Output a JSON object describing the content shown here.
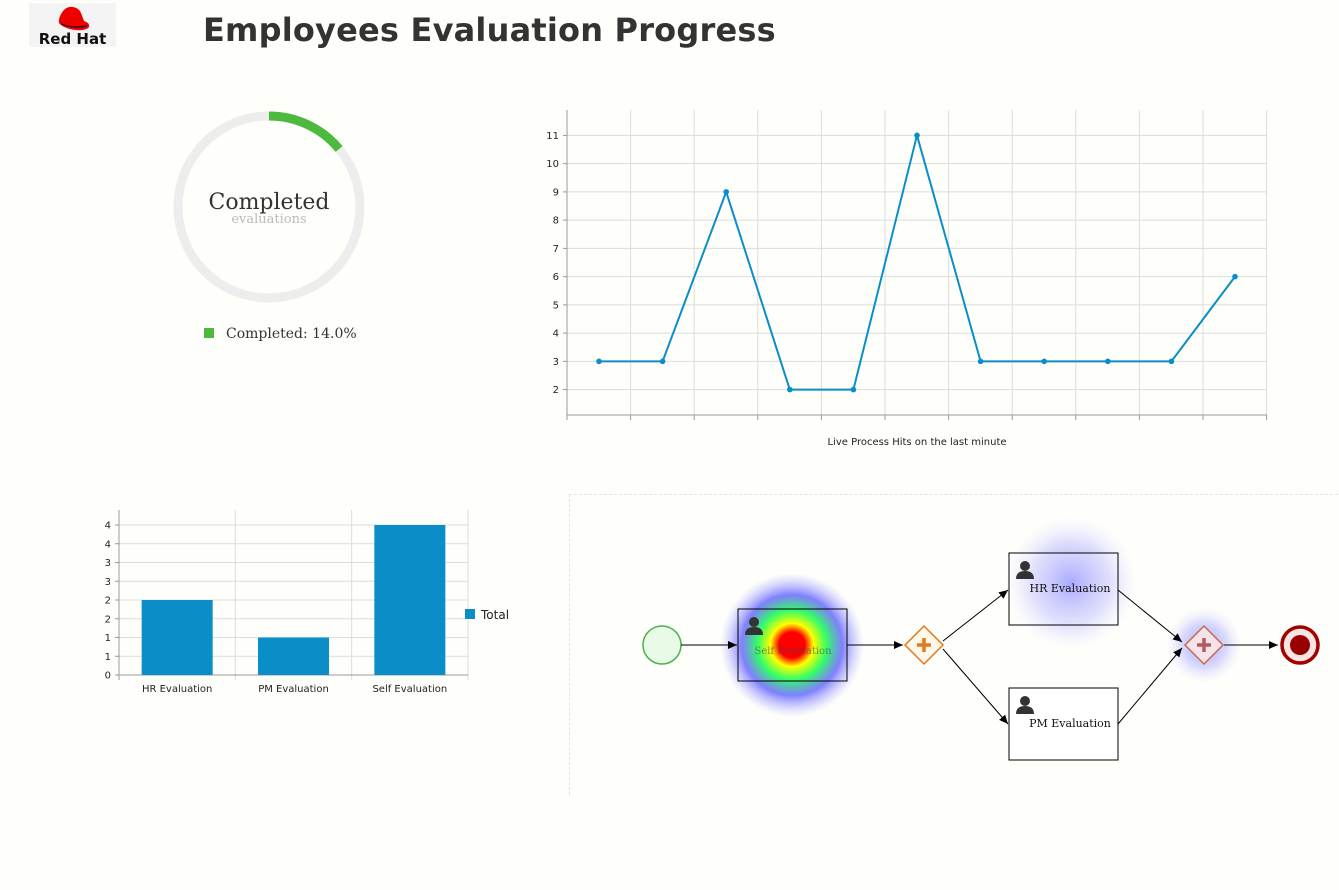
{
  "header": {
    "logo_text": "Red Hat",
    "title": "Employees Evaluation Progress"
  },
  "donut": {
    "center_title": "Completed",
    "center_subtitle": "evaluations",
    "legend_label": "Completed: 14.0%",
    "completed_fraction": 0.14,
    "color": "#4cb93f"
  },
  "chart_data": [
    {
      "type": "line",
      "x": [
        1,
        2,
        3,
        4,
        5,
        6,
        7,
        8,
        9,
        10,
        11
      ],
      "series": [
        {
          "values": [
            3,
            3,
            9,
            2,
            2,
            11,
            3,
            3,
            3,
            3,
            6
          ]
        }
      ],
      "xlabel": "Live Process Hits on the last minute",
      "ylabel": "",
      "ylim": [
        1.1,
        11.9
      ],
      "y_ticks": [
        "2",
        "3",
        "4",
        "5",
        "6",
        "7",
        "8",
        "9",
        "10",
        "11"
      ],
      "grid": true,
      "color": "#0b8ec8"
    },
    {
      "type": "bar",
      "categories": [
        "HR Evaluation",
        "PM Evaluation",
        "Self Evaluation"
      ],
      "series": [
        {
          "name": "Total",
          "values": [
            2,
            1,
            4
          ]
        }
      ],
      "ylim": [
        0,
        4
      ],
      "y_ticks": [
        "0",
        "1",
        "1",
        "2",
        "2",
        "3",
        "3",
        "4",
        "4"
      ],
      "grid": true,
      "legend": "right",
      "color": "#0b8ec8"
    }
  ],
  "process": {
    "tasks": [
      {
        "label": "Self Evaluation",
        "icon": "user-icon"
      },
      {
        "label": "HR Evaluation",
        "icon": "user-icon"
      },
      {
        "label": "PM Evaluation",
        "icon": "user-icon"
      }
    ],
    "gateway_icon": "plus-icon",
    "start_event_icon": "start-event-icon",
    "end_event_icon": "end-event-icon"
  }
}
